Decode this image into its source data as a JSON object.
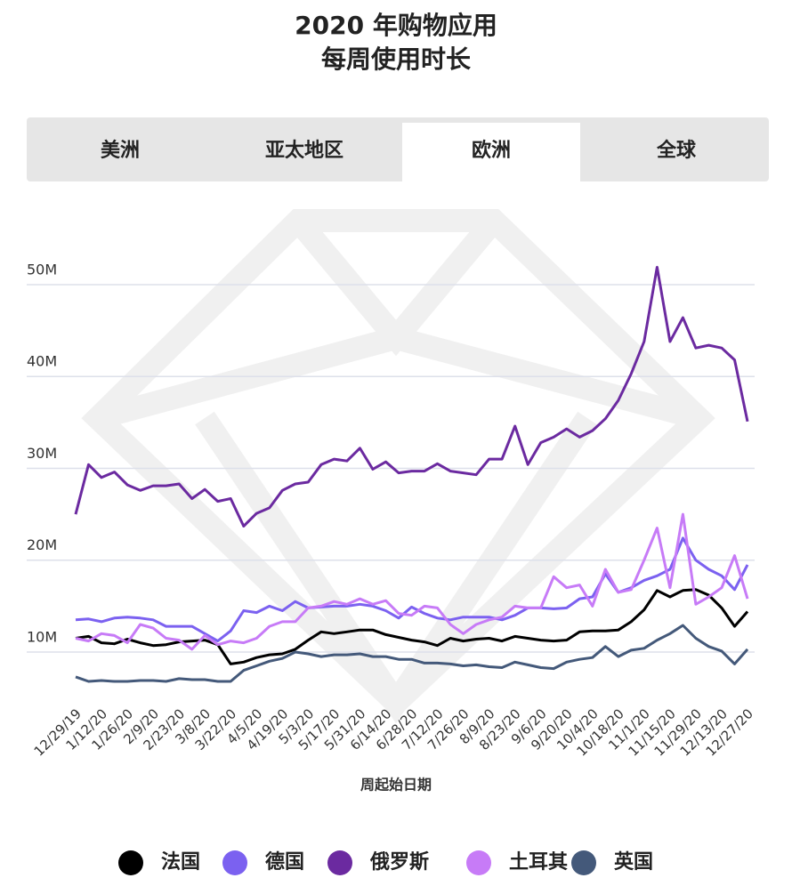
{
  "title": [
    "2020 年购物应用",
    "每周使用时长"
  ],
  "tabs": [
    "美洲",
    "亚太地区",
    "欧洲",
    "全球"
  ],
  "active_tab": 2,
  "chart_data": {
    "type": "line",
    "x_label": "周起始日期",
    "categories": [
      "12/29/19",
      null,
      "1/12/20",
      null,
      "1/26/20",
      null,
      "2/9/20",
      null,
      "2/23/20",
      null,
      "3/8/20",
      null,
      "3/22/20",
      null,
      "4/5/20",
      null,
      "4/19/20",
      null,
      "5/3/20",
      null,
      "5/17/20",
      null,
      "5/31/20",
      null,
      "6/14/20",
      null,
      "6/28/20",
      null,
      "7/12/20",
      null,
      "7/26/20",
      null,
      "8/9/20",
      null,
      "8/23/20",
      null,
      "9/6/20",
      null,
      "9/20/20",
      null,
      "10/4/20",
      null,
      "10/18/20",
      null,
      "11/1/20",
      null,
      "11/15/20",
      null,
      "11/29/20",
      null,
      "12/13/20",
      null,
      "12/27/20"
    ],
    "ylim": [
      5,
      57
    ],
    "yticks": [
      {
        "value": 10,
        "label": "10M"
      },
      {
        "value": 20,
        "label": "20M"
      },
      {
        "value": 30,
        "label": "30M"
      },
      {
        "value": 40,
        "label": "40M"
      },
      {
        "value": 50,
        "label": "50M"
      }
    ],
    "grid": true,
    "legend": "bottom",
    "series": [
      {
        "name": "法国",
        "color": "#000000",
        "values": [
          11.5,
          11.7,
          11.0,
          10.9,
          11.4,
          11.0,
          10.7,
          10.8,
          11.1,
          11.2,
          11.3,
          10.8,
          8.7,
          8.9,
          9.4,
          9.7,
          9.8,
          10.3,
          11.3,
          12.2,
          12.0,
          12.2,
          12.4,
          12.4,
          11.9,
          11.6,
          11.3,
          11.1,
          10.7,
          11.5,
          11.2,
          11.4,
          11.5,
          11.2,
          11.7,
          11.5,
          11.3,
          11.2,
          11.3,
          12.2,
          12.3,
          12.3,
          12.4,
          13.3,
          14.6,
          16.7,
          16.0,
          16.7,
          16.8,
          16.2,
          14.8,
          12.8,
          14.4
        ]
      },
      {
        "name": "德国",
        "color": "#7b61f0",
        "values": [
          13.5,
          13.6,
          13.3,
          13.7,
          13.8,
          13.7,
          13.5,
          12.8,
          12.8,
          12.8,
          12.0,
          11.2,
          12.3,
          14.5,
          14.3,
          15.0,
          14.5,
          15.5,
          14.8,
          14.9,
          15.0,
          15.0,
          15.2,
          15.0,
          14.5,
          13.7,
          14.9,
          14.2,
          13.7,
          13.5,
          13.8,
          13.8,
          13.8,
          13.5,
          14.0,
          14.8,
          14.8,
          14.7,
          14.8,
          15.8,
          16.0,
          18.5,
          16.5,
          17.0,
          17.8,
          18.3,
          19.0,
          22.4,
          20.0,
          19.0,
          18.3,
          16.8,
          19.5
        ]
      },
      {
        "name": "俄罗斯",
        "color": "#6b2aa0",
        "values": [
          25.0,
          30.4,
          29.0,
          29.6,
          28.2,
          27.6,
          28.1,
          28.1,
          28.3,
          26.7,
          27.7,
          26.4,
          26.7,
          23.7,
          25.1,
          25.7,
          27.6,
          28.3,
          28.5,
          30.4,
          31.0,
          30.8,
          32.2,
          29.9,
          30.7,
          29.5,
          29.7,
          29.7,
          30.5,
          29.7,
          29.5,
          29.3,
          31.0,
          31.0,
          34.6,
          30.4,
          32.8,
          33.4,
          34.3,
          33.4,
          34.1,
          35.4,
          37.4,
          40.3,
          43.8,
          51.9,
          43.8,
          46.4,
          43.1,
          43.4,
          43.1,
          41.8,
          35.1
        ]
      },
      {
        "name": "土耳其",
        "color": "#c77bf7",
        "values": [
          11.5,
          11.2,
          12.0,
          11.8,
          11.0,
          13.0,
          12.6,
          11.5,
          11.3,
          10.3,
          11.8,
          10.8,
          11.2,
          11.0,
          11.5,
          12.8,
          13.3,
          13.3,
          14.8,
          15.0,
          15.5,
          15.2,
          15.8,
          15.2,
          15.6,
          14.2,
          14.0,
          15.0,
          14.8,
          13.0,
          12.0,
          13.0,
          13.5,
          13.8,
          15.0,
          14.8,
          14.8,
          18.2,
          17.0,
          17.3,
          15.0,
          19.0,
          16.5,
          16.8,
          20.0,
          23.5,
          17.0,
          25.0,
          15.2,
          16.0,
          17.0,
          20.5,
          15.8
        ]
      },
      {
        "name": "英国",
        "color": "#44597a",
        "values": [
          7.3,
          6.8,
          6.9,
          6.8,
          6.8,
          6.9,
          6.9,
          6.8,
          7.1,
          7.0,
          7.0,
          6.8,
          6.8,
          8.0,
          8.5,
          9.0,
          9.3,
          10.0,
          9.8,
          9.5,
          9.7,
          9.7,
          9.8,
          9.5,
          9.5,
          9.2,
          9.2,
          8.8,
          8.8,
          8.7,
          8.5,
          8.6,
          8.4,
          8.3,
          8.9,
          8.6,
          8.3,
          8.2,
          8.9,
          9.2,
          9.4,
          10.6,
          9.5,
          10.2,
          10.4,
          11.3,
          12.0,
          12.9,
          11.5,
          10.6,
          10.1,
          8.7,
          10.3
        ]
      }
    ]
  }
}
